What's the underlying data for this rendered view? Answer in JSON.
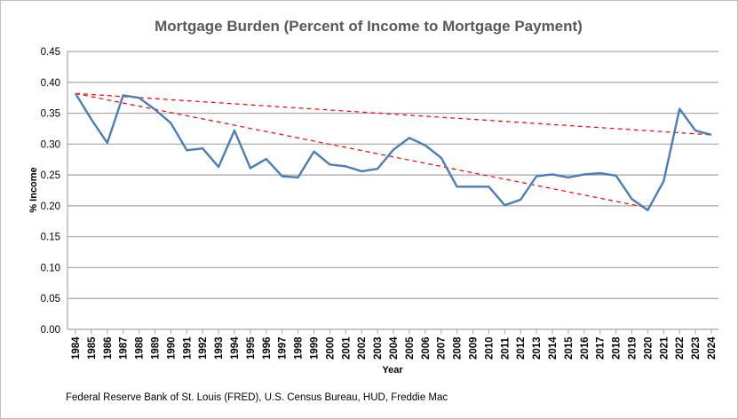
{
  "chart_data": {
    "type": "line",
    "title": "Mortgage Burden (Percent of Income to Mortgage Payment)",
    "xlabel": "Year",
    "ylabel": "% Income",
    "ylim": [
      0,
      0.45
    ],
    "yticks": [
      "0.00",
      "0.05",
      "0.10",
      "0.15",
      "0.20",
      "0.25",
      "0.30",
      "0.35",
      "0.40",
      "0.45"
    ],
    "grid": true,
    "x": [
      1984,
      1985,
      1986,
      1987,
      1988,
      1989,
      1990,
      1991,
      1992,
      1993,
      1994,
      1995,
      1996,
      1997,
      1998,
      1999,
      2000,
      2001,
      2002,
      2003,
      2004,
      2005,
      2006,
      2007,
      2008,
      2009,
      2010,
      2011,
      2012,
      2013,
      2014,
      2015,
      2016,
      2017,
      2018,
      2019,
      2020,
      2021,
      2022,
      2023,
      2024
    ],
    "series": [
      {
        "values": [
          0.382,
          0.34,
          0.302,
          0.379,
          0.375,
          0.356,
          0.334,
          0.29,
          0.293,
          0.263,
          0.322,
          0.261,
          0.276,
          0.248,
          0.246,
          0.288,
          0.267,
          0.264,
          0.256,
          0.26,
          0.291,
          0.31,
          0.298,
          0.278,
          0.231,
          0.231,
          0.231,
          0.201,
          0.21,
          0.248,
          0.251,
          0.246,
          0.251,
          0.253,
          0.249,
          0.211,
          0.193,
          0.24,
          0.357,
          0.322,
          0.315
        ],
        "color": "#4a7ebb"
      }
    ],
    "trendlines": [
      {
        "from": [
          1984,
          0.382
        ],
        "to": [
          2024,
          0.315
        ],
        "color": "#ff0000",
        "style": "dashed"
      },
      {
        "from": [
          1984,
          0.382
        ],
        "to": [
          2020,
          0.197
        ],
        "color": "#ff0000",
        "style": "dashed"
      }
    ],
    "source": "Federal Reserve Bank of St. Louis (FRED), U.S. Census Bureau, HUD, Freddie Mac"
  }
}
